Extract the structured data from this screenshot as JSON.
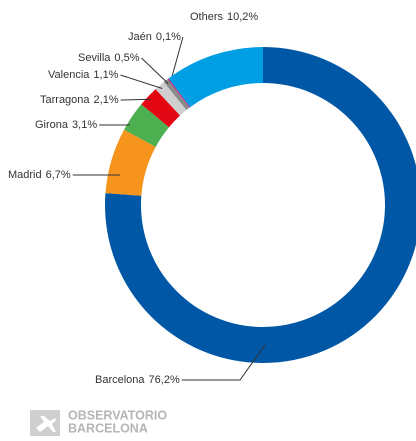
{
  "chart_data": {
    "type": "donut",
    "categories": [
      "Barcelona",
      "Madrid",
      "Girona",
      "Tarragona",
      "Valencia",
      "Sevilla",
      "Jaén",
      "Others"
    ],
    "values": [
      76.2,
      6.7,
      3.1,
      2.1,
      1.1,
      0.5,
      0.1,
      10.2
    ],
    "value_labels": [
      "76,2%",
      "6,7%",
      "3,1%",
      "2,1%",
      "1,1%",
      "0,5%",
      "0,1%",
      "10,2%"
    ],
    "colors": [
      "#0057a5",
      "#f7941d",
      "#4caf50",
      "#e30613",
      "#cfcfcf",
      "#8a8a8a",
      "#e4007c",
      "#009fe3"
    ]
  },
  "logo": {
    "lines": [
      "OBSERVATORIO",
      "BARCELONA"
    ]
  }
}
